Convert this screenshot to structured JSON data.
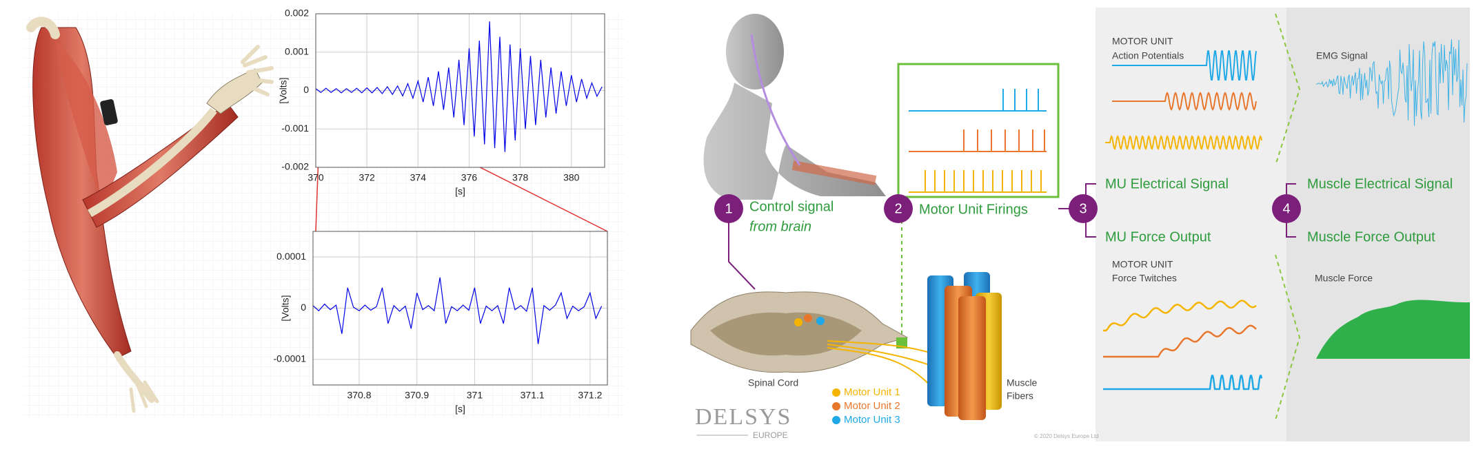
{
  "chart_data": [
    {
      "type": "line",
      "xlabel": "[s]",
      "ylabel": "[Volts]",
      "x": [
        370.0,
        370.2,
        370.4,
        370.6,
        370.8,
        371.0,
        371.2,
        371.4,
        371.6,
        371.8,
        372.0,
        372.2,
        372.4,
        372.6,
        372.8,
        373.0,
        373.2,
        373.4,
        373.6,
        373.8,
        374.0,
        374.2,
        374.4,
        374.6,
        374.8,
        375.0,
        375.2,
        375.4,
        375.6,
        375.8,
        376.0,
        376.2,
        376.4,
        376.6,
        376.8,
        377.0,
        377.2,
        377.4,
        377.6,
        377.8,
        378.0,
        378.2,
        378.4,
        378.6,
        378.8,
        379.0,
        379.2,
        379.4,
        379.6,
        379.8,
        380.0,
        380.2,
        380.4,
        380.6,
        380.8,
        381.0,
        381.2
      ],
      "series": [
        {
          "color": "#0000e6",
          "values": [
            5e-05,
            -5e-05,
            6e-05,
            -5e-05,
            5e-05,
            -6e-05,
            5e-05,
            -5e-05,
            6e-05,
            -6e-05,
            7e-05,
            -6e-05,
            8e-05,
            -8e-05,
            0.0001,
            -0.0001,
            0.00012,
            -0.00014,
            0.00018,
            -0.0002,
            0.00025,
            -0.0003,
            0.00035,
            -0.0004,
            0.0005,
            -0.0005,
            0.0006,
            -0.0007,
            0.0008,
            -0.0009,
            0.0011,
            -0.0012,
            0.0013,
            -0.0014,
            0.0018,
            -0.0015,
            0.0014,
            -0.0016,
            0.0012,
            -0.0013,
            0.0011,
            -0.001,
            0.0009,
            -0.0009,
            0.0008,
            -0.0007,
            0.0006,
            -0.0006,
            0.0005,
            -0.0004,
            0.0004,
            -0.0003,
            0.0003,
            -0.0002,
            0.0002,
            -0.00015,
            0.0001
          ]
        }
      ],
      "xlim": [
        370,
        381.3
      ],
      "xticks": [
        370,
        372,
        374,
        376,
        378,
        380
      ],
      "ylim": [
        -0.002,
        0.002
      ],
      "yticks": [
        -0.002,
        -0.001,
        0,
        0.001,
        0.002
      ],
      "grid": true
    },
    {
      "type": "line",
      "xlabel": "[s]",
      "ylabel": "[Volts]",
      "x": [
        370.72,
        370.73,
        370.74,
        370.75,
        370.76,
        370.77,
        370.78,
        370.79,
        370.8,
        370.81,
        370.82,
        370.83,
        370.84,
        370.85,
        370.86,
        370.87,
        370.88,
        370.89,
        370.9,
        370.91,
        370.92,
        370.93,
        370.94,
        370.95,
        370.96,
        370.97,
        370.98,
        370.99,
        371.0,
        371.01,
        371.02,
        371.03,
        371.04,
        371.05,
        371.06,
        371.07,
        371.08,
        371.09,
        371.1,
        371.11,
        371.12,
        371.13,
        371.14,
        371.15,
        371.16,
        371.17,
        371.18,
        371.19,
        371.2,
        371.21,
        371.22
      ],
      "series": [
        {
          "color": "#0000e6",
          "values": [
            5e-06,
            -5e-06,
            8e-06,
            -3e-06,
            6e-06,
            -5e-05,
            4e-05,
            2e-06,
            -5e-06,
            6e-06,
            -4e-06,
            3e-06,
            4e-05,
            -3e-05,
            5e-06,
            -6e-06,
            4e-06,
            -4e-05,
            3e-05,
            -3e-06,
            5e-06,
            -5e-06,
            6e-05,
            -3e-05,
            3e-06,
            -5e-06,
            6e-06,
            -4e-06,
            4e-05,
            -3e-05,
            4e-06,
            -5e-06,
            5e-06,
            -3e-05,
            4e-05,
            -3e-06,
            5e-06,
            -6e-06,
            4e-05,
            -7e-05,
            5e-06,
            -4e-06,
            6e-06,
            3e-05,
            -2e-05,
            4e-06,
            -5e-06,
            3e-06,
            3e-05,
            -2e-05,
            4e-06
          ]
        }
      ],
      "xlim": [
        370.72,
        371.23
      ],
      "xticks": [
        370.8,
        370.9,
        371,
        371.1,
        371.2
      ],
      "ylim": [
        -0.00015,
        0.00015
      ],
      "yticks": [
        -0.0001,
        0,
        0.0001
      ],
      "grid": true
    }
  ],
  "diagram": {
    "steps": [
      {
        "number": "1",
        "lines": [
          "Control signal",
          "from brain"
        ]
      },
      {
        "number": "2",
        "label": "Motor Unit Firings"
      },
      {
        "number": "3",
        "outputs": [
          "MU Electrical Signal",
          "MU Force Output"
        ]
      },
      {
        "number": "4",
        "outputs": [
          "Muscle Electrical Signal",
          "Muscle Force Output"
        ]
      }
    ],
    "panels": {
      "action_potentials": [
        "MOTOR UNIT",
        "Action Potentials"
      ],
      "emg": "EMG Signal",
      "force_twitches": [
        "MOTOR UNIT",
        "Force Twitches"
      ],
      "muscle_force": "Muscle Force"
    },
    "spinal_cord": "Spinal Cord",
    "muscle_fibers": [
      "Muscle",
      "Fibers"
    ],
    "legend": [
      {
        "label": "Motor Unit 1",
        "color": "#f5b400"
      },
      {
        "label": "Motor Unit 2",
        "color": "#e8772c"
      },
      {
        "label": "Motor Unit 3",
        "color": "#1ea9e6"
      }
    ],
    "brand": "DELSYS",
    "brand_sub": "EUROPE",
    "copyright": "© 2020 Delsys Europe Ltd"
  }
}
